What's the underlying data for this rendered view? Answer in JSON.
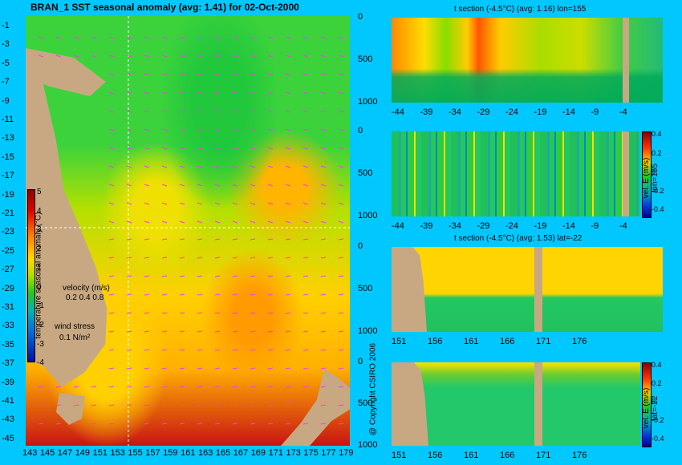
{
  "colors": {
    "background": "#00c8ff",
    "land": "#c8a882",
    "grid": "#ffffff",
    "vectors": "#ff33ff"
  },
  "map_panel": {
    "title": "BRAN_1  SST seasonal anomaly (avg: 1.41) for 02-Oct-2000",
    "y_ticks": [
      "-1",
      "-3",
      "-5",
      "-7",
      "-9",
      "-11",
      "-13",
      "-15",
      "-17",
      "-19",
      "-21",
      "-23",
      "-25",
      "-27",
      "-29",
      "-31",
      "-33",
      "-35",
      "-37",
      "-39",
      "-41",
      "-43",
      "-45"
    ],
    "x_ticks": [
      "143",
      "145",
      "147",
      "149",
      "151",
      "153",
      "155",
      "157",
      "159",
      "161",
      "163",
      "165",
      "167",
      "169",
      "171",
      "173",
      "175",
      "177",
      "179"
    ],
    "colorbar_label": "temperature seasonal anomaly (°C)",
    "colorbar_ticks": [
      "5",
      "4",
      "3",
      "2",
      "1",
      "0",
      "-1",
      "-2",
      "-3",
      "-4"
    ],
    "velocity_legend": {
      "title": "velocity (m/s)",
      "values": "0.2 0.4 0.8"
    },
    "wind_legend": {
      "title": "wind stress",
      "value": "0.1 N/m²"
    },
    "copyright": "@ Copyright CSIRO 2006"
  },
  "chart_data": [
    {
      "type": "heatmap",
      "title": "BRAN_1  SST seasonal anomaly (avg: 1.41) for 02-Oct-2000",
      "xlim": [
        143,
        180
      ],
      "ylim": [
        -45,
        0
      ],
      "colorbar_range": [
        -4,
        5
      ],
      "avg": 1.41,
      "date": "02-Oct-2000"
    },
    {
      "type": "heatmap",
      "title": "t section (-4.5°C) (avg: 1.16) lon=155",
      "x_ticks": [
        "-44",
        "-39",
        "-34",
        "-29",
        "-24",
        "-19",
        "-14",
        "-9",
        "-4"
      ],
      "y_ticks": [
        "0",
        "500",
        "1000"
      ],
      "avg": 1.16
    },
    {
      "type": "heatmap",
      "title": "",
      "x_ticks": [
        "-44",
        "-39",
        "-34",
        "-29",
        "-24",
        "-19",
        "-14",
        "-9",
        "-4"
      ],
      "y_ticks": [
        "0",
        "500",
        "1000"
      ],
      "colorbar_label": "vel. E (m/s) lon=155",
      "colorbar_ticks": [
        "0.4",
        "0.2",
        "0",
        "-0.2",
        "-0.4"
      ]
    },
    {
      "type": "heatmap",
      "title": "t section (-4.5°C) (avg: 1.53) lat=-22",
      "x_ticks": [
        "151",
        "156",
        "161",
        "166",
        "171",
        "176"
      ],
      "y_ticks": [
        "0",
        "500",
        "1000"
      ],
      "avg": 1.53
    },
    {
      "type": "heatmap",
      "title": "",
      "x_ticks": [
        "151",
        "156",
        "161",
        "166",
        "171",
        "176"
      ],
      "y_ticks": [
        "0",
        "500",
        "1000"
      ],
      "colorbar_label": "vel. E (m/s) lat=-22",
      "colorbar_ticks": [
        "0.4",
        "0.2",
        "0",
        "-0.2",
        "-0.4"
      ]
    }
  ]
}
